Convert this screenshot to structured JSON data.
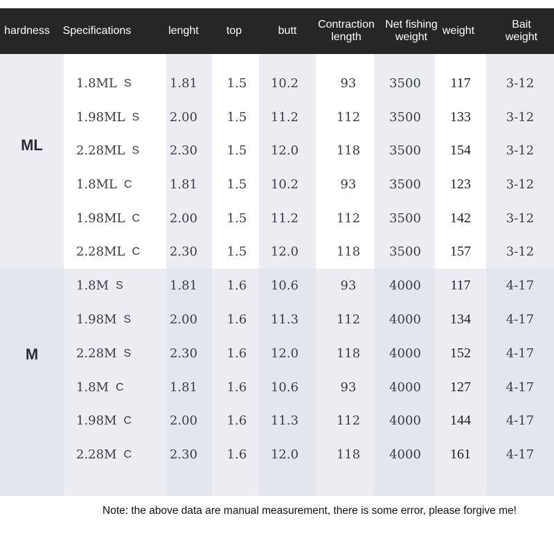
{
  "header": {
    "hardness": "hardness",
    "specifications": "Specifications",
    "length": "lenght",
    "top": "top",
    "butt": "butt",
    "contraction_length": "Contraction\nlength",
    "net_fishing_weight": "Net fishing\nweight",
    "weight": "weight",
    "bait_weight": "Bait\nweight"
  },
  "groups": [
    {
      "label": "ML",
      "rows": [
        {
          "spec": "1.8ML",
          "type": "S",
          "length": "1.81",
          "top": "1.5",
          "butt": "10.2",
          "contraction": "93",
          "net": "3500",
          "weight": "117",
          "bait": "3-12"
        },
        {
          "spec": "1.98ML",
          "type": "S",
          "length": "2.00",
          "top": "1.5",
          "butt": "11.2",
          "contraction": "112",
          "net": "3500",
          "weight": "133",
          "bait": "3-12"
        },
        {
          "spec": "2.28ML",
          "type": "S",
          "length": "2.30",
          "top": "1.5",
          "butt": "12.0",
          "contraction": "118",
          "net": "3500",
          "weight": "154",
          "bait": "3-12"
        },
        {
          "spec": "1.8ML",
          "type": "C",
          "length": "1.81",
          "top": "1.5",
          "butt": "10.2",
          "contraction": "93",
          "net": "3500",
          "weight": "123",
          "bait": "3-12"
        },
        {
          "spec": "1.98ML",
          "type": "C",
          "length": "2.00",
          "top": "1.5",
          "butt": "11.2",
          "contraction": "112",
          "net": "3500",
          "weight": "142",
          "bait": "3-12"
        },
        {
          "spec": "2.28ML",
          "type": "C",
          "length": "2.30",
          "top": "1.5",
          "butt": "12.0",
          "contraction": "118",
          "net": "3500",
          "weight": "157",
          "bait": "3-12"
        }
      ]
    },
    {
      "label": "M",
      "rows": [
        {
          "spec": "1.8M",
          "type": "S",
          "length": "1.81",
          "top": "1.6",
          "butt": "10.6",
          "contraction": "93",
          "net": "4000",
          "weight": "117",
          "bait": "4-17"
        },
        {
          "spec": "1.98M",
          "type": "S",
          "length": "2.00",
          "top": "1.6",
          "butt": "11.3",
          "contraction": "112",
          "net": "4000",
          "weight": "134",
          "bait": "4-17"
        },
        {
          "spec": "2.28M",
          "type": "S",
          "length": "2.30",
          "top": "1.6",
          "butt": "12.0",
          "contraction": "118",
          "net": "4000",
          "weight": "152",
          "bait": "4-17"
        },
        {
          "spec": "1.8M",
          "type": "C",
          "length": "1.81",
          "top": "1.6",
          "butt": "10.6",
          "contraction": "93",
          "net": "4000",
          "weight": "127",
          "bait": "4-17"
        },
        {
          "spec": "1.98M",
          "type": "C",
          "length": "2.00",
          "top": "1.6",
          "butt": "11.3",
          "contraction": "112",
          "net": "4000",
          "weight": "144",
          "bait": "4-17"
        },
        {
          "spec": "2.28M",
          "type": "C",
          "length": "2.30",
          "top": "1.6",
          "butt": "12.0",
          "contraction": "118",
          "net": "4000",
          "weight": "161",
          "bait": "4-17"
        }
      ]
    }
  ],
  "note": "Note: the above data are manual measurement, there is some error, please forgive me!",
  "colors": {
    "header_bg": "#262626",
    "header_text": "#ffffff",
    "ml_group_bg": "#ecedf3",
    "m_group_bg": "#e4e6ee",
    "column_band_white": "#ffffff"
  }
}
